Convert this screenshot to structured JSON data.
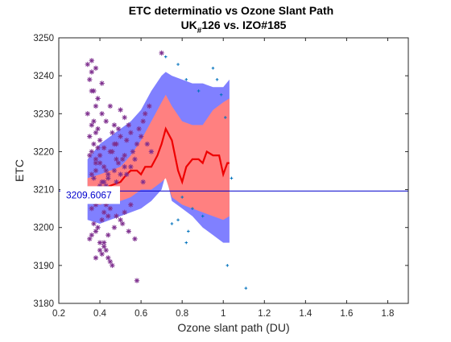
{
  "chart_data": {
    "type": "scatter",
    "title_line1": "ETC determinatio  vs Ozone Slant Path",
    "title_line2_prefix": "UK",
    "title_line2_subscript": "#",
    "title_line2_suffix": "126 vs. IZO#185",
    "xlabel": "Ozone slant path (DU)",
    "ylabel": "ETC",
    "xlim": [
      0.2,
      1.9
    ],
    "ylim": [
      3180,
      3250
    ],
    "xticks": [
      0.2,
      0.4,
      0.6,
      0.8,
      1.0,
      1.2,
      1.4,
      1.6,
      1.8
    ],
    "xtick_labels": [
      "0.2",
      "0.4",
      "0.6",
      "0.8",
      "1",
      "1.2",
      "1.4",
      "1.6",
      "1.8"
    ],
    "yticks": [
      3180,
      3190,
      3200,
      3210,
      3220,
      3230,
      3240,
      3250
    ],
    "ytick_labels": [
      "3180",
      "3190",
      "3200",
      "3210",
      "3220",
      "3230",
      "3240",
      "3250"
    ],
    "grid": false,
    "reference_line": {
      "y": 3209.6067,
      "label": "3209.6067",
      "color": "#0000cd"
    },
    "bands": {
      "x": [
        0.34,
        0.4,
        0.45,
        0.5,
        0.55,
        0.6,
        0.65,
        0.7,
        0.72,
        0.75,
        0.8,
        0.85,
        0.9,
        0.95,
        1.0,
        1.03
      ],
      "outer_upper": [
        3218,
        3222,
        3224,
        3226,
        3228,
        3231,
        3236,
        3240,
        3241,
        3240,
        3239,
        3238,
        3238,
        3237,
        3237,
        3239
      ],
      "inner_upper": [
        3213,
        3214,
        3215,
        3216,
        3219,
        3223,
        3228,
        3233,
        3235,
        3232,
        3228,
        3227,
        3227,
        3231,
        3233,
        3234
      ],
      "inner_lower": [
        3207,
        3206,
        3207,
        3207,
        3208,
        3210,
        3210,
        3212,
        3213,
        3208,
        3206,
        3205,
        3204,
        3203,
        3202,
        3203
      ],
      "outer_lower": [
        3202,
        3201,
        3202,
        3203,
        3204,
        3205,
        3207,
        3210,
        3214,
        3207,
        3205,
        3203,
        3200,
        3198,
        3196,
        3196
      ],
      "outer_color": "#8080ff",
      "inner_color": "#ff8080"
    },
    "mean_line": {
      "x": [
        0.34,
        0.4,
        0.45,
        0.5,
        0.53,
        0.55,
        0.58,
        0.6,
        0.62,
        0.65,
        0.68,
        0.7,
        0.72,
        0.75,
        0.78,
        0.8,
        0.82,
        0.85,
        0.88,
        0.9,
        0.92,
        0.95,
        0.98,
        1.0,
        1.02,
        1.03
      ],
      "y": [
        3209,
        3210,
        3211,
        3212,
        3214,
        3215,
        3215,
        3214,
        3216,
        3216,
        3219,
        3222,
        3226,
        3223,
        3215,
        3212,
        3216,
        3218,
        3218,
        3217,
        3220,
        3219,
        3219,
        3214,
        3217,
        3217
      ],
      "color": "#ee0000"
    },
    "series": [
      {
        "marker": "*",
        "color": "#7e2f8e",
        "x": [
          0.36,
          0.38,
          0.35,
          0.36,
          0.38,
          0.34,
          0.37,
          0.36,
          0.39,
          0.38,
          0.35,
          0.4,
          0.37,
          0.39,
          0.36,
          0.35,
          0.38,
          0.4,
          0.42,
          0.38,
          0.36,
          0.37,
          0.41,
          0.43,
          0.39,
          0.35,
          0.37,
          0.4,
          0.38,
          0.36,
          0.42,
          0.44,
          0.41,
          0.37,
          0.39,
          0.38,
          0.36,
          0.35,
          0.4,
          0.42,
          0.43,
          0.41,
          0.44,
          0.45,
          0.46,
          0.42,
          0.4,
          0.38,
          0.43,
          0.47,
          0.45,
          0.48,
          0.44,
          0.42,
          0.4,
          0.46,
          0.47,
          0.43,
          0.41,
          0.45,
          0.49,
          0.5,
          0.48,
          0.46,
          0.51,
          0.52,
          0.5,
          0.48,
          0.53,
          0.55,
          0.54,
          0.52,
          0.5,
          0.56,
          0.57,
          0.55,
          0.53,
          0.58,
          0.6,
          0.59,
          0.61,
          0.62,
          0.64,
          0.63,
          0.65,
          0.55,
          0.52,
          0.5,
          0.47,
          0.44,
          0.42,
          0.4,
          0.38,
          0.45,
          0.48,
          0.51,
          0.54,
          0.57,
          0.46,
          0.43,
          0.39,
          0.37,
          0.41,
          0.36,
          0.34,
          0.38,
          0.4,
          0.44,
          0.47,
          0.49,
          0.52,
          0.7,
          0.58,
          0.61
        ],
        "y": [
          3244,
          3242,
          3239,
          3236,
          3232,
          3230,
          3228,
          3227,
          3226,
          3225,
          3224,
          3223,
          3222,
          3221,
          3220,
          3219,
          3218,
          3217,
          3216,
          3215,
          3214,
          3213,
          3212,
          3211,
          3210,
          3209,
          3208,
          3207,
          3206,
          3205,
          3204,
          3203,
          3202,
          3201,
          3200,
          3199,
          3198,
          3197,
          3196,
          3195,
          3194,
          3193,
          3192,
          3191,
          3190,
          3221,
          3219,
          3217,
          3215,
          3222,
          3220,
          3218,
          3214,
          3212,
          3210,
          3225,
          3227,
          3228,
          3230,
          3232,
          3226,
          3224,
          3222,
          3220,
          3218,
          3216,
          3214,
          3212,
          3223,
          3225,
          3227,
          3229,
          3231,
          3220,
          3218,
          3216,
          3214,
          3222,
          3224,
          3226,
          3228,
          3230,
          3232,
          3222,
          3220,
          3206,
          3204,
          3202,
          3200,
          3198,
          3196,
          3194,
          3192,
          3205,
          3203,
          3201,
          3199,
          3197,
          3208,
          3206,
          3234,
          3236,
          3238,
          3241,
          3243,
          3210,
          3211,
          3213,
          3215,
          3217,
          3219,
          3246,
          3186,
          3212
        ]
      },
      {
        "marker": "+",
        "color": "#0072bd",
        "x": [
          0.72,
          0.78,
          0.82,
          0.88,
          0.95,
          0.97,
          0.99,
          1.01,
          0.8,
          0.85,
          0.9,
          1.04,
          0.78,
          0.83,
          1.02,
          1.11,
          0.82,
          0.75
        ],
        "y": [
          3245,
          3243,
          3239,
          3236,
          3242,
          3239,
          3235,
          3229,
          3208,
          3205,
          3203,
          3213,
          3202,
          3199,
          3190,
          3184,
          3196,
          3201
        ]
      }
    ]
  }
}
